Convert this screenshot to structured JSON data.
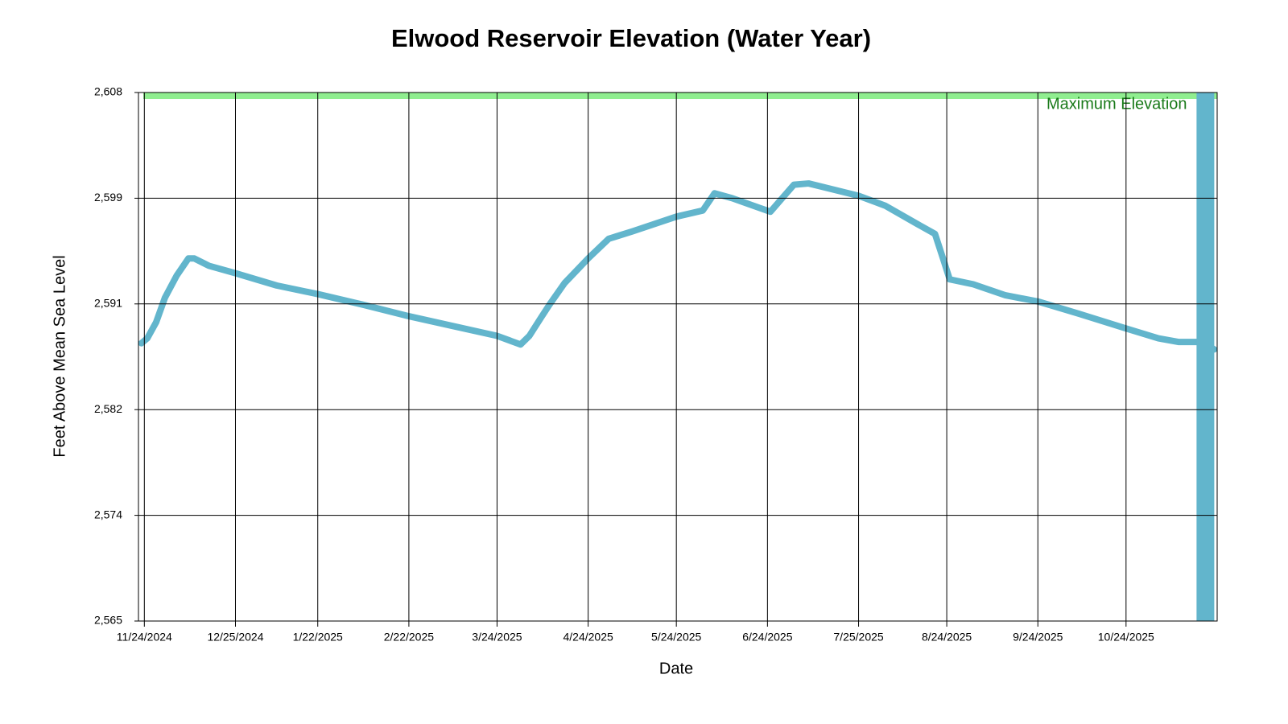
{
  "chart_data": {
    "type": "line",
    "title": "Elwood Reservoir Elevation (Water Year)",
    "x_label": "Date",
    "y_label": "Feet Above Mean Sea Level",
    "x": [
      "11/23/2024",
      "11/25/2024",
      "11/28/2024",
      "12/1/2024",
      "12/5/2024",
      "12/9/2024",
      "12/11/2024",
      "12/16/2024",
      "12/25/2024",
      "1/8/2025",
      "1/22/2025",
      "2/7/2025",
      "2/22/2025",
      "3/9/2025",
      "3/24/2025",
      "4/1/2025",
      "4/4/2025",
      "4/8/2025",
      "4/11/2025",
      "4/16/2025",
      "4/24/2025",
      "5/1/2025",
      "5/9/2025",
      "5/24/2025",
      "6/2/2025",
      "6/6/2025",
      "6/12/2025",
      "6/25/2025",
      "7/3/2025",
      "7/8/2025",
      "7/25/2025",
      "8/3/2025",
      "8/14/2025",
      "8/20/2025",
      "8/23/2025",
      "8/25/2025",
      "9/2/2025",
      "9/13/2025",
      "9/24/2025",
      "10/8/2025",
      "10/24/2025",
      "11/4/2025",
      "11/11/2025",
      "11/19/2025",
      "11/23/2025"
    ],
    "series": [
      {
        "name": "Elevation",
        "color": "#62b5cc",
        "values": [
          2587.6,
          2588.0,
          2589.3,
          2591.3,
          2593.1,
          2594.5,
          2594.5,
          2593.9,
          2593.3,
          2592.3,
          2591.6,
          2590.7,
          2589.8,
          2589.0,
          2588.2,
          2587.5,
          2588.2,
          2589.7,
          2590.8,
          2592.5,
          2594.5,
          2596.1,
          2596.7,
          2597.9,
          2598.4,
          2599.8,
          2599.4,
          2598.3,
          2600.5,
          2600.6,
          2599.6,
          2598.8,
          2597.3,
          2596.5,
          2594.3,
          2592.8,
          2592.4,
          2591.5,
          2591.0,
          2590.0,
          2588.8,
          2588.0,
          2587.7,
          2587.7,
          2587.1
        ]
      }
    ],
    "xlim": [
      "11/22/2024",
      "11/24/2025"
    ],
    "xticks": [
      "11/24/2024",
      "12/25/2024",
      "1/22/2025",
      "2/22/2025",
      "3/24/2025",
      "4/24/2025",
      "5/24/2025",
      "6/24/2025",
      "7/25/2025",
      "8/24/2025",
      "9/24/2025",
      "10/24/2025"
    ],
    "ylim": [
      2565,
      2608
    ],
    "yticks": [
      {
        "value": 2565,
        "label": "2,565"
      },
      {
        "value": 2573.6,
        "label": "2,574"
      },
      {
        "value": 2582.2,
        "label": "2,582"
      },
      {
        "value": 2590.8,
        "label": "2,591"
      },
      {
        "value": 2599.4,
        "label": "2,599"
      },
      {
        "value": 2608,
        "label": "2,608"
      }
    ],
    "grid": true,
    "max_line": {
      "value": 2608,
      "label": "Maximum Elevation",
      "color": "#90ee90"
    },
    "current_date_line": {
      "x": "11/20/2025",
      "color": "#62b5cc"
    }
  }
}
